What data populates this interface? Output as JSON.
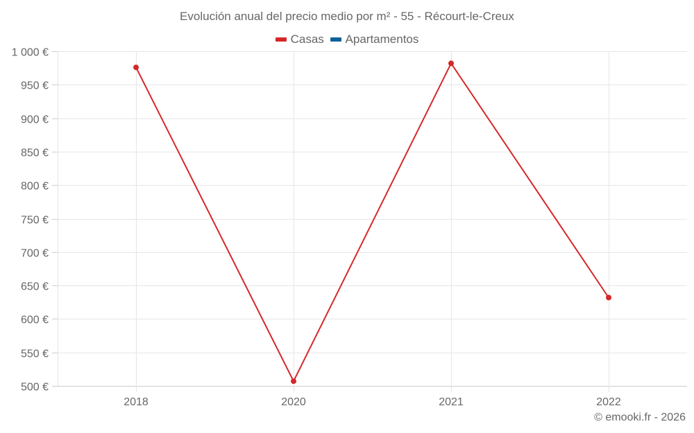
{
  "chart_data": {
    "type": "line",
    "title": "Evolución anual del precio medio por m² - 55 - Récourt-le-Creux",
    "xlabel": "",
    "ylabel": "",
    "categories": [
      "2018",
      "2020",
      "2021",
      "2022"
    ],
    "series": [
      {
        "name": "Casas",
        "color": "#d62728",
        "values": [
          976,
          507,
          982,
          632
        ]
      },
      {
        "name": "Apartamentos",
        "color": "#0f6199",
        "values": []
      }
    ],
    "ylim": [
      500,
      1000
    ],
    "yticks": [
      500,
      550,
      600,
      650,
      700,
      750,
      800,
      850,
      900,
      950,
      1000
    ],
    "ytick_labels": [
      "500 €",
      "550 €",
      "600 €",
      "650 €",
      "700 €",
      "750 €",
      "800 €",
      "850 €",
      "900 €",
      "950 €",
      "1 000 €"
    ],
    "grid": true,
    "legend_position": "top"
  },
  "title": "Evolución anual del precio medio por m² - 55 - Récourt-le-Creux",
  "legend": [
    {
      "label": "Casas",
      "color": "#d62728"
    },
    {
      "label": "Apartamentos",
      "color": "#0f6199"
    }
  ],
  "credits": "© emooki.fr - 2026"
}
